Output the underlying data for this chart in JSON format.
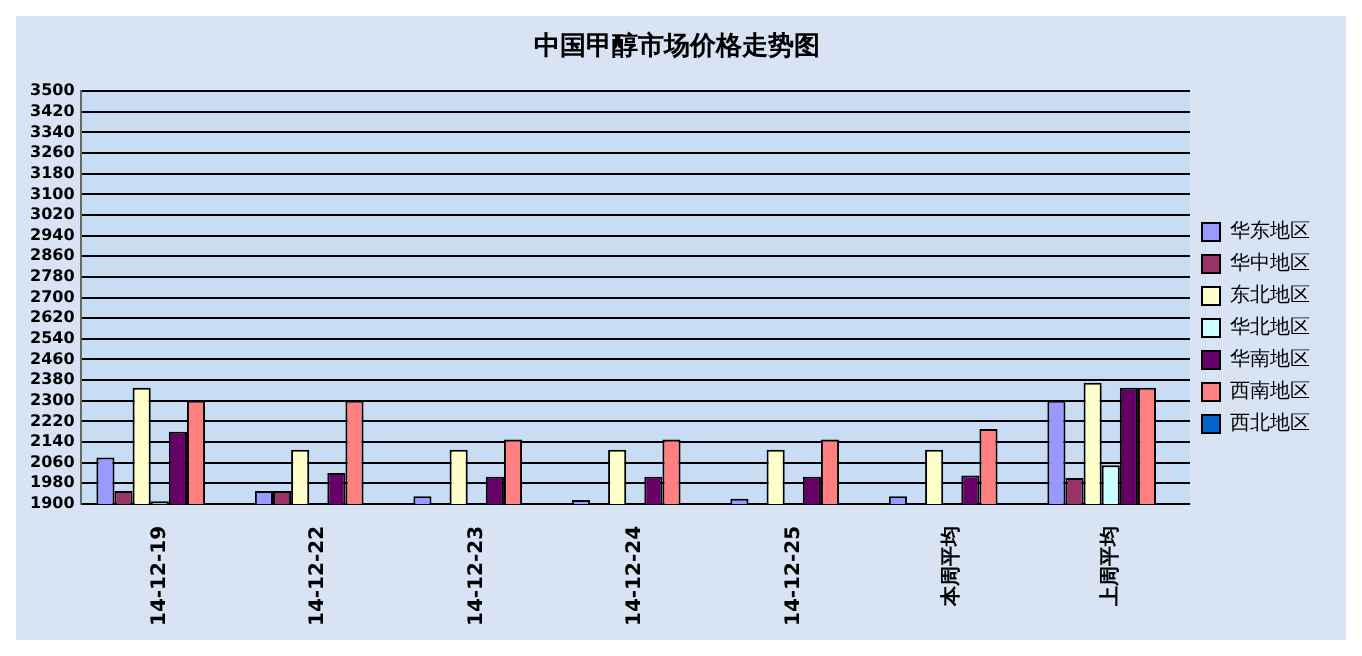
{
  "chart_data": {
    "type": "bar",
    "title": "中国甲醇市场价格走势图",
    "categories": [
      "14-12-19",
      "14-12-22",
      "14-12-23",
      "14-12-24",
      "14-12-25",
      "本周平均",
      "上周平均"
    ],
    "series": [
      {
        "name": "华东地区",
        "color": "#9999ff",
        "values": [
          2080,
          1950,
          1930,
          1915,
          1920,
          1930,
          2300
        ]
      },
      {
        "name": "华中地区",
        "color": "#993366",
        "values": [
          1950,
          1950,
          null,
          null,
          null,
          null,
          2000
        ]
      },
      {
        "name": "东北地区",
        "color": "#ffffcc",
        "values": [
          2350,
          2110,
          2110,
          2110,
          2110,
          2110,
          2370
        ]
      },
      {
        "name": "华北地区",
        "color": "#ccffff",
        "values": [
          1910,
          null,
          null,
          null,
          null,
          null,
          2050
        ]
      },
      {
        "name": "华南地区",
        "color": "#660066",
        "values": [
          2180,
          2020,
          2005,
          2005,
          2005,
          2010,
          2350
        ]
      },
      {
        "name": "西南地区",
        "color": "#ff8080",
        "values": [
          2300,
          2300,
          2150,
          2150,
          2150,
          2190,
          2350
        ]
      },
      {
        "name": "西北地区",
        "color": "#0066cc",
        "values": [
          null,
          null,
          null,
          null,
          null,
          null,
          null
        ]
      }
    ],
    "ylim": [
      1900,
      3500
    ],
    "yticks": [
      1900,
      1980,
      2060,
      2140,
      2220,
      2300,
      2380,
      2460,
      2540,
      2620,
      2700,
      2780,
      2860,
      2940,
      3020,
      3100,
      3180,
      3260,
      3340,
      3420,
      3500
    ],
    "grid": "y",
    "legend": "right"
  }
}
